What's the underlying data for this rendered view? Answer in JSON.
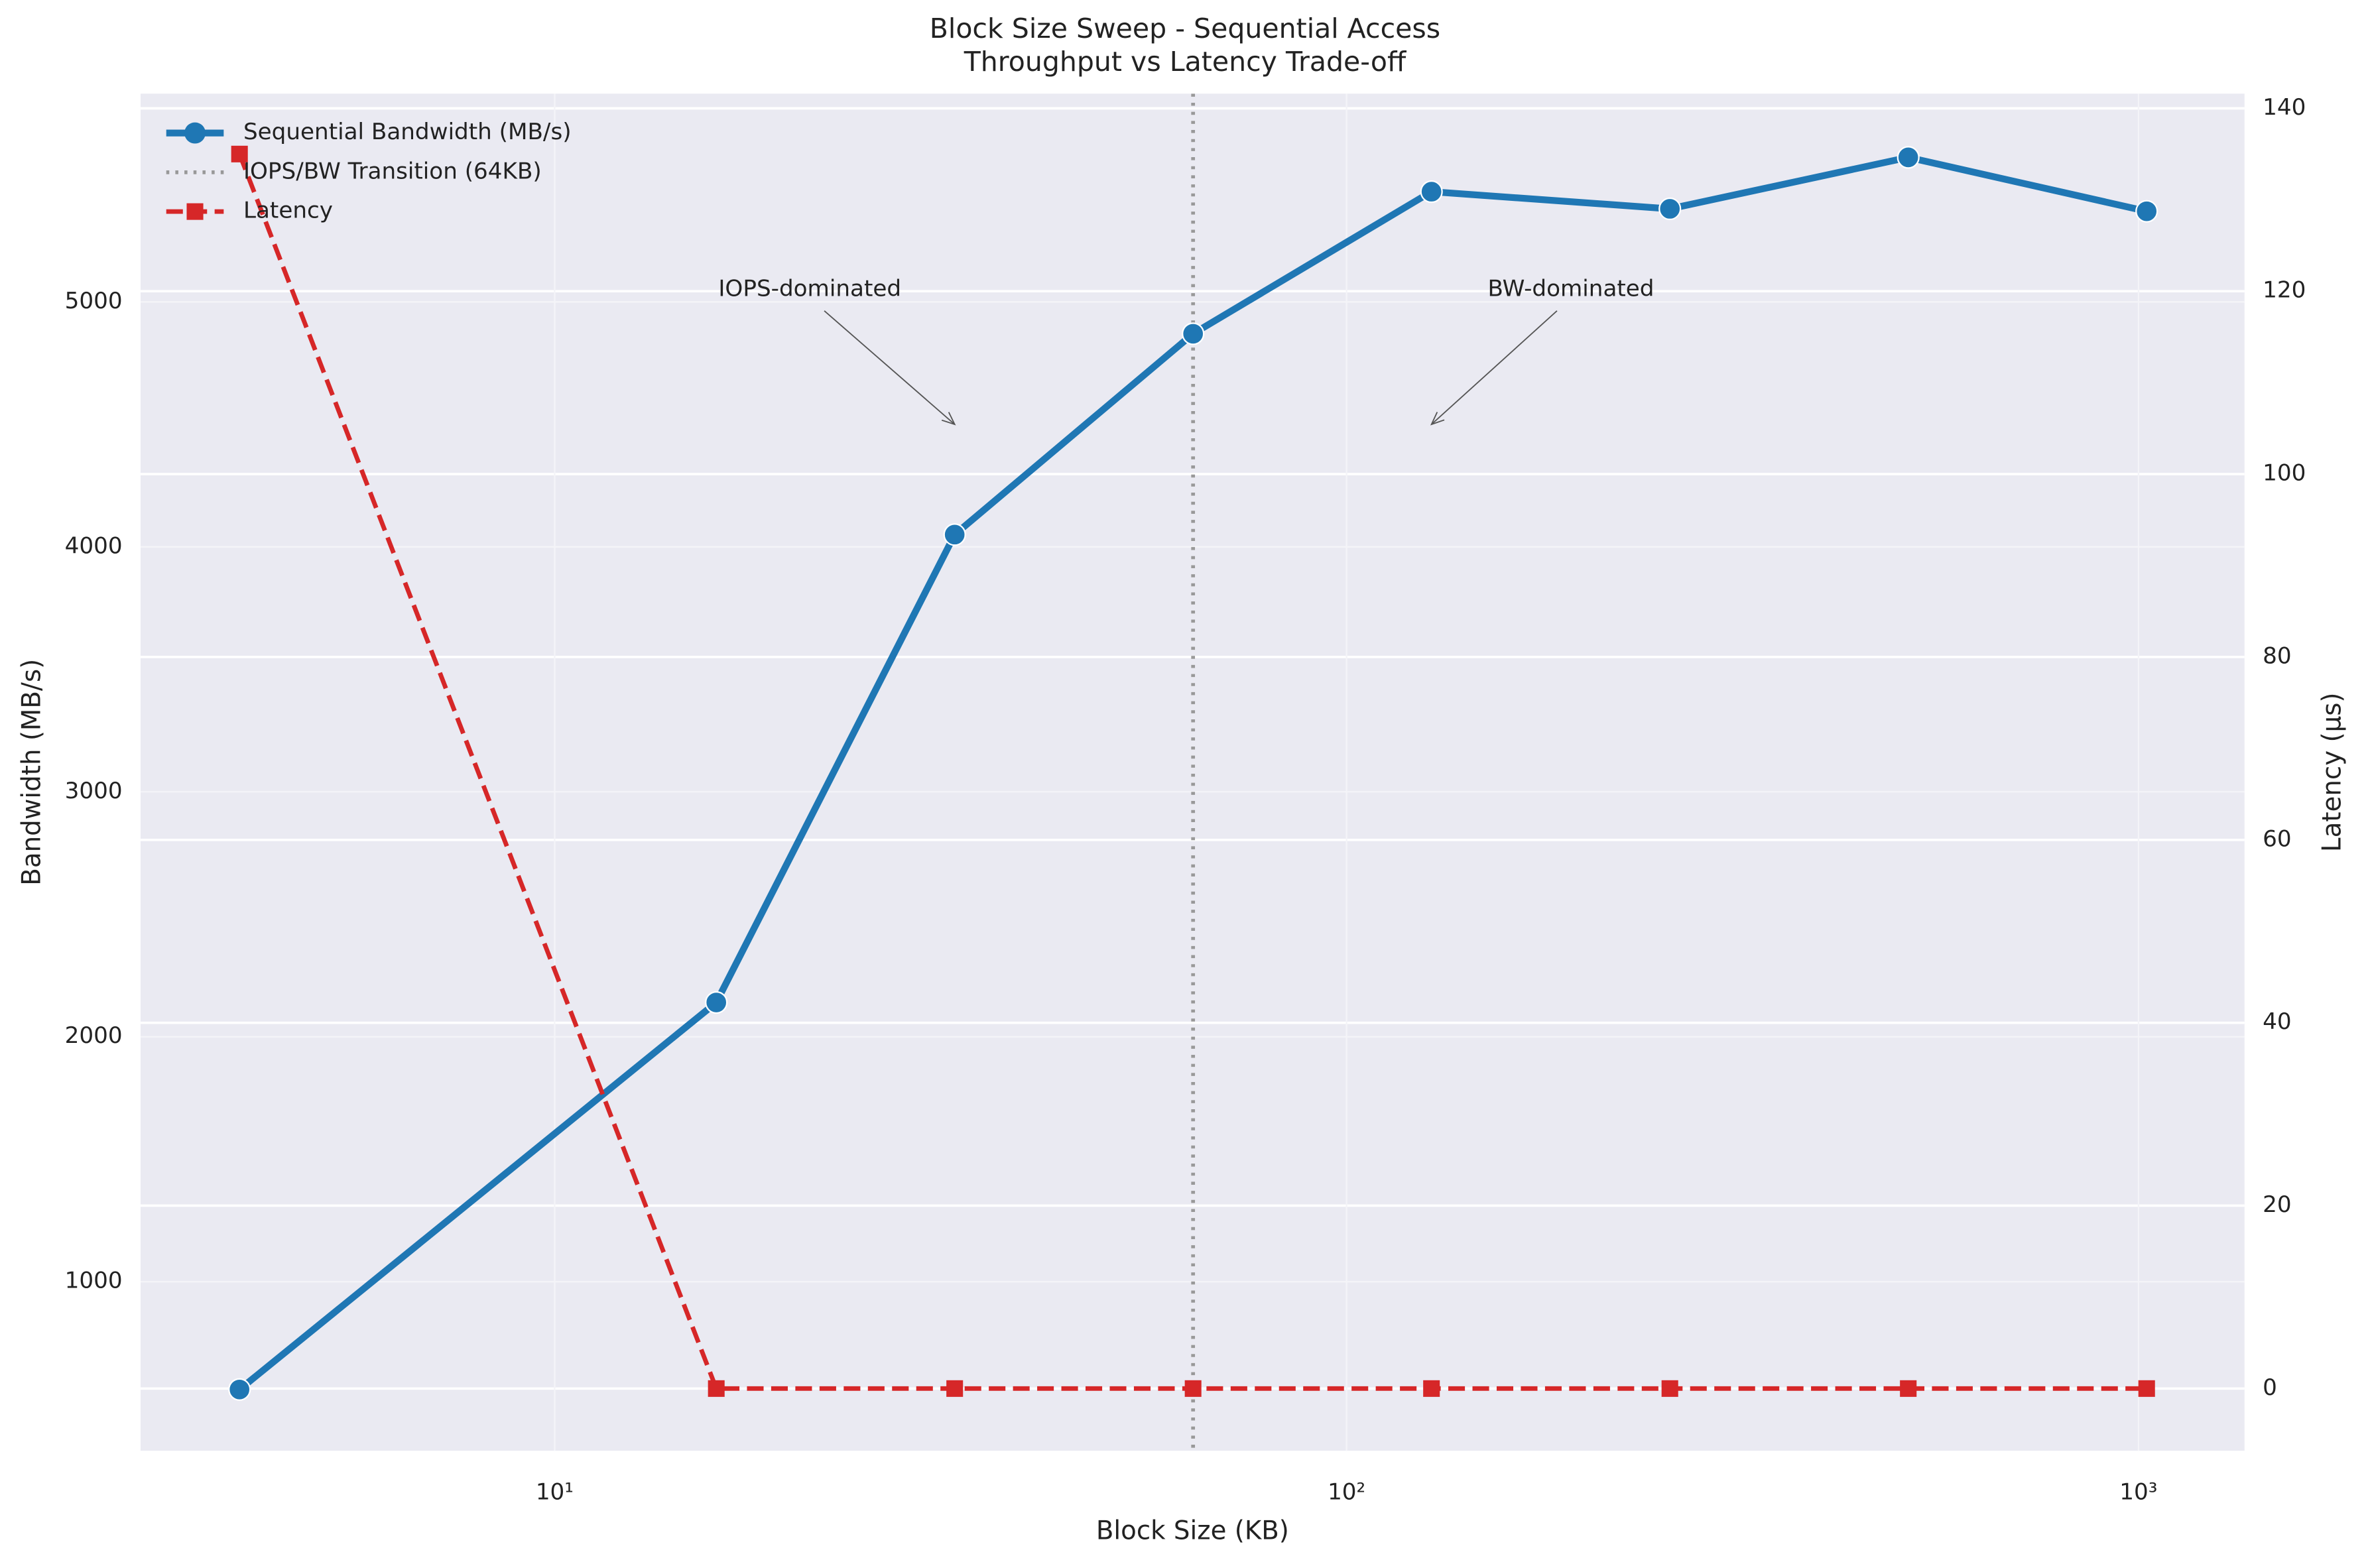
{
  "chart_data": {
    "type": "line",
    "title": "Block Size Sweep - Sequential Access\nThroughput vs Latency Trade-off",
    "xlabel": "Block Size (KB)",
    "ylabel": "Bandwidth (MB/s)",
    "y2label": "Latency (µs)",
    "xscale": "log",
    "x": [
      4,
      16,
      32,
      64,
      128,
      256,
      512,
      1024
    ],
    "series": [
      {
        "name": "Sequential Bandwidth (MB/s)",
        "color": "#1f77b4",
        "marker": "circle",
        "dash": "solid",
        "axis": "y",
        "values": [
          560,
          2140,
          4050,
          4870,
          5450,
          5380,
          5590,
          5370
        ]
      },
      {
        "name": "Latency",
        "color": "#d62728",
        "marker": "square",
        "dash": "dashed",
        "axis": "y2",
        "values": [
          135,
          0,
          0,
          0,
          0,
          0,
          0,
          0
        ]
      }
    ],
    "vlines": [
      {
        "x": 64,
        "name": "IOPS/BW Transition (64KB)",
        "color": "#999999"
      }
    ],
    "annotations": [
      {
        "text": "IOPS-dominated",
        "xy": [
          32,
          4500
        ],
        "xytext": [
          21,
          5050
        ]
      },
      {
        "text": "BW-dominated",
        "xy": [
          128,
          4500
        ],
        "xytext": [
          192,
          5050
        ]
      }
    ],
    "xlim": [
      3.0,
      1361
    ],
    "xticks": [
      {
        "value": 10,
        "label": "10¹"
      },
      {
        "value": 100,
        "label": "10²"
      },
      {
        "value": 1000,
        "label": "10³"
      }
    ],
    "ylim": [
      310,
      5850
    ],
    "yticks": [
      1000,
      2000,
      3000,
      4000,
      5000
    ],
    "y2lim": [
      -6.8,
      141.6
    ],
    "y2ticks": [
      0,
      20,
      40,
      60,
      80,
      100,
      120,
      140
    ],
    "grid": true,
    "legend": "upper left"
  }
}
